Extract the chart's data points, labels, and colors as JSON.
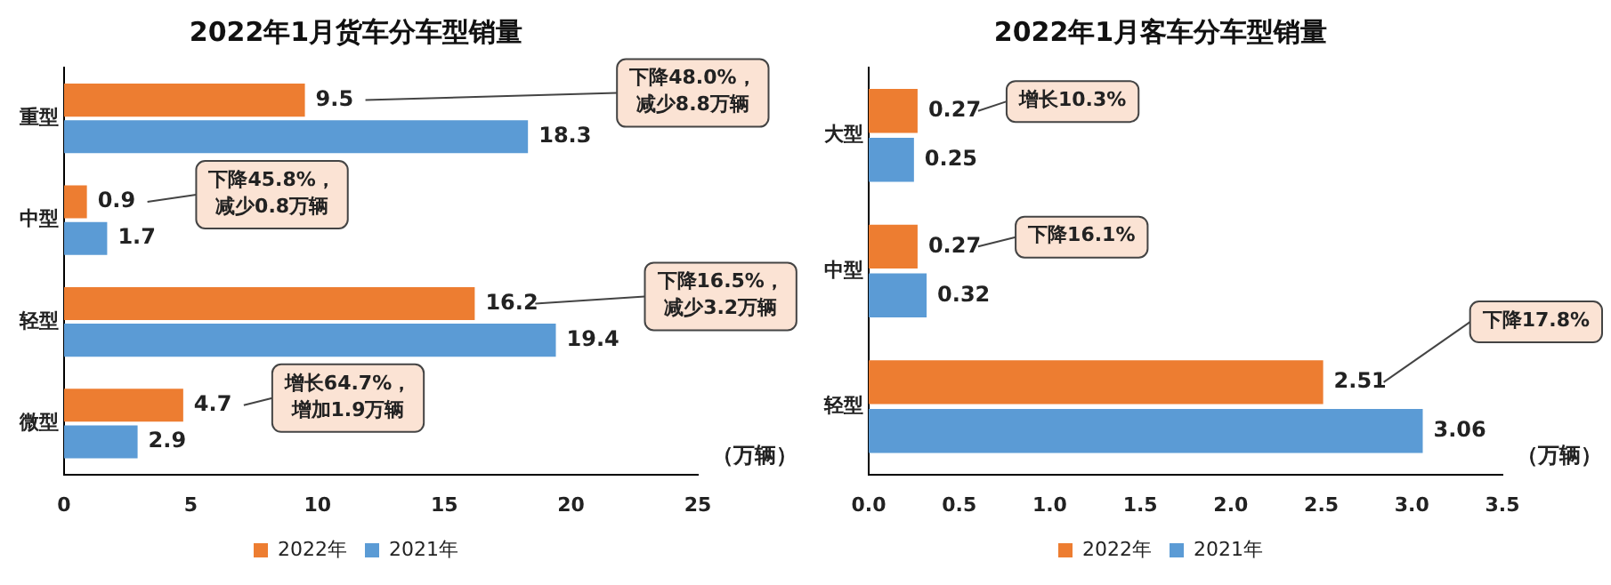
{
  "chart_data": [
    {
      "type": "bar",
      "orientation": "horizontal",
      "title": "2022年1月货车分车型销量",
      "xlabel": "（万辆）",
      "categories": [
        "重型",
        "中型",
        "轻型",
        "微型"
      ],
      "series": [
        {
          "name": "2022年",
          "color": "#ed7d31",
          "values": [
            9.5,
            0.9,
            16.2,
            4.7
          ]
        },
        {
          "name": "2021年",
          "color": "#5b9bd5",
          "values": [
            18.3,
            1.7,
            19.4,
            2.9
          ]
        }
      ],
      "xlim": [
        0,
        25
      ],
      "xticks": [
        0,
        5,
        10,
        15,
        20,
        25
      ],
      "grid": false,
      "legend": "bottom",
      "data_labels": true,
      "annotations": [
        "下降48.0%，减少8.8万辆",
        "下降45.8%，减少0.8万辆",
        "下降16.5%，减少3.2万辆",
        "增长64.7%，增加1.9万辆"
      ]
    },
    {
      "type": "bar",
      "orientation": "horizontal",
      "title": "2022年1月客车分车型销量",
      "xlabel": "（万辆）",
      "categories": [
        "大型",
        "中型",
        "轻型"
      ],
      "series": [
        {
          "name": "2022年",
          "color": "#ed7d31",
          "values": [
            0.27,
            0.27,
            2.51
          ]
        },
        {
          "name": "2021年",
          "color": "#5b9bd5",
          "values": [
            0.25,
            0.32,
            3.06
          ]
        }
      ],
      "xlim": [
        0,
        3.5
      ],
      "xticks": [
        {
          "value": 0,
          "label": "0.0"
        },
        {
          "value": 0.5,
          "label": "0.5"
        },
        {
          "value": 1,
          "label": "1.0"
        },
        {
          "value": 1.5,
          "label": "1.5"
        },
        {
          "value": 2,
          "label": "2.0"
        },
        {
          "value": 2.5,
          "label": "2.5"
        },
        {
          "value": 3,
          "label": "3.0"
        },
        {
          "value": 3.5,
          "label": "3.5"
        }
      ],
      "grid": false,
      "legend": "bottom",
      "data_labels": true,
      "annotations": [
        "增长10.3%",
        "下降16.1%",
        "下降17.8%"
      ]
    }
  ]
}
